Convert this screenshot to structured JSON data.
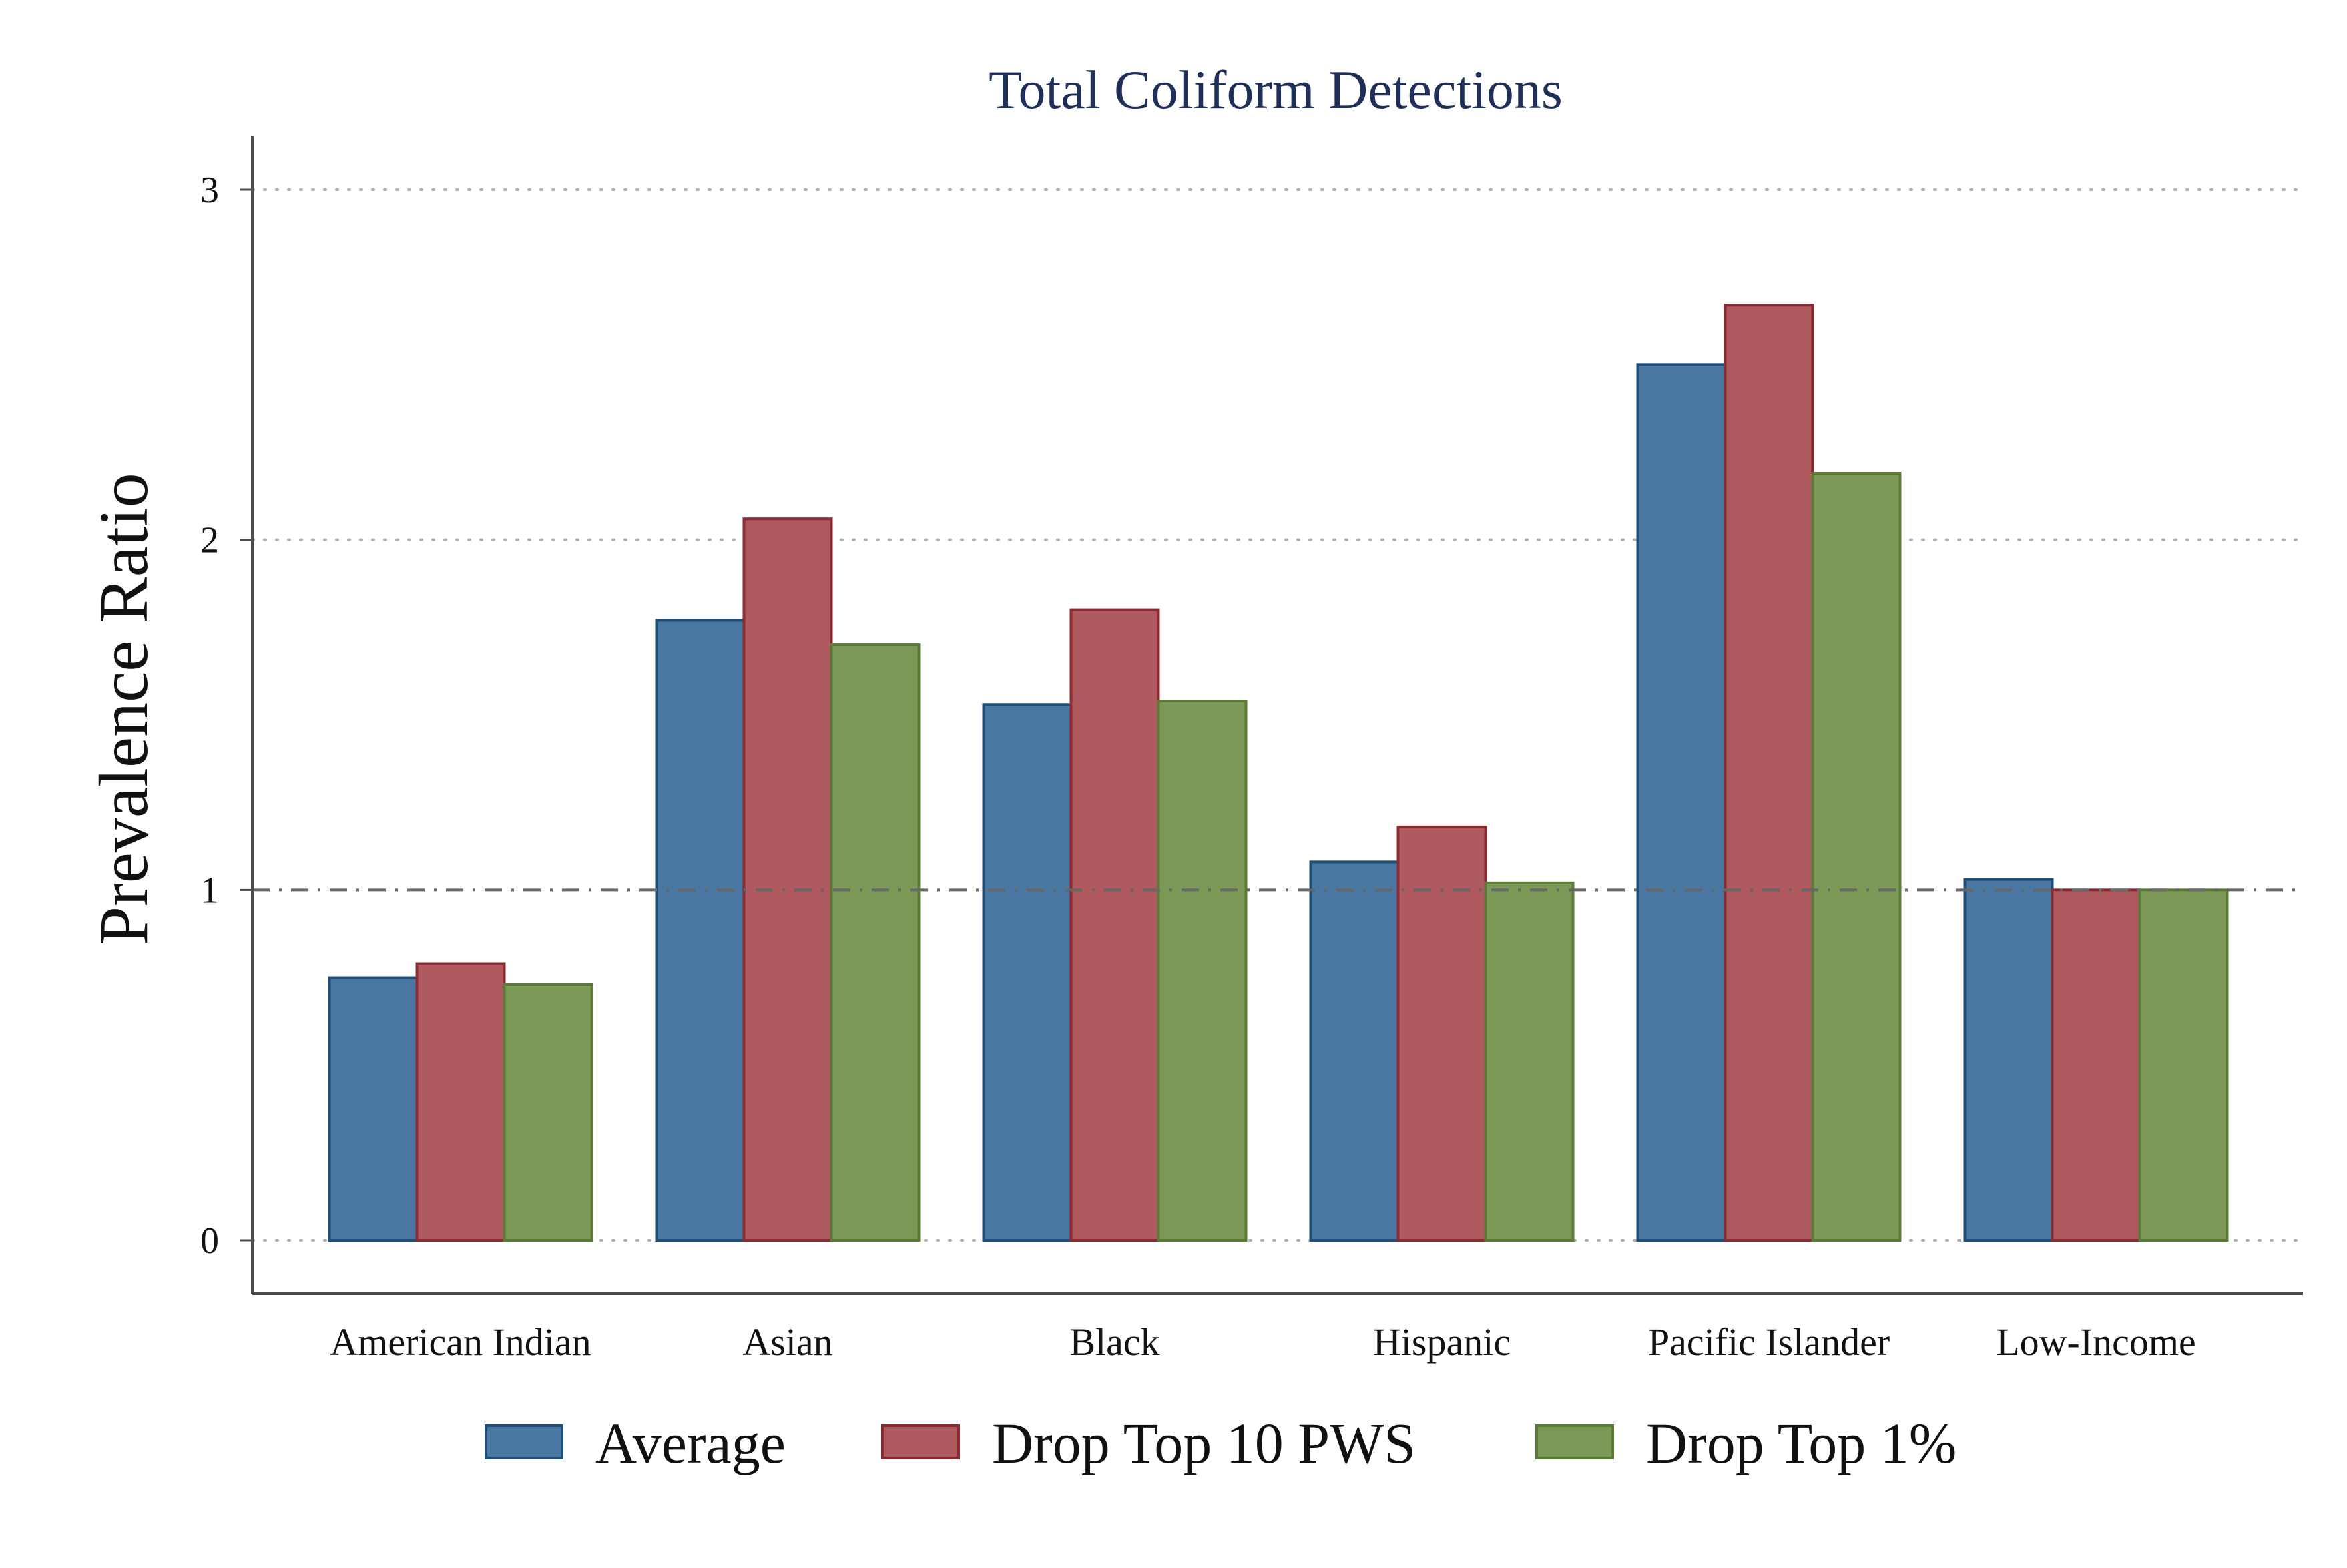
{
  "chart_data": {
    "type": "bar",
    "title": "Total Coliform Detections",
    "xlabel": "",
    "ylabel": "Prevalence Ratio",
    "ylim": [
      0,
      3.15
    ],
    "yticks": [
      "0",
      "1",
      "2",
      "3"
    ],
    "reference_line": 1,
    "grid": "horizontal dotted",
    "legend_position": "bottom",
    "categories": [
      "American Indian",
      "Asian",
      "Black",
      "Hispanic",
      "Pacific Islander",
      "Low-Income"
    ],
    "series": [
      {
        "name": "Average",
        "color": "#4A77A1",
        "edge": "#1F4E79",
        "values": [
          0.75,
          1.77,
          1.53,
          1.08,
          2.5,
          1.03
        ]
      },
      {
        "name": "Drop Top 10 PWS",
        "color": "#AE5A5F",
        "edge": "#8C2A32",
        "values": [
          0.79,
          2.06,
          1.8,
          1.18,
          2.67,
          1.0
        ]
      },
      {
        "name": "Drop Top 1%",
        "color": "#7C9957",
        "edge": "#5B7A36",
        "values": [
          0.73,
          1.7,
          1.54,
          1.02,
          2.19,
          1.0
        ]
      }
    ],
    "colors": {
      "title": "#1F2F57",
      "axis": "#4D4D4D",
      "grid": "#B0B0B0",
      "refline": "#666666",
      "text": "#111111"
    }
  }
}
